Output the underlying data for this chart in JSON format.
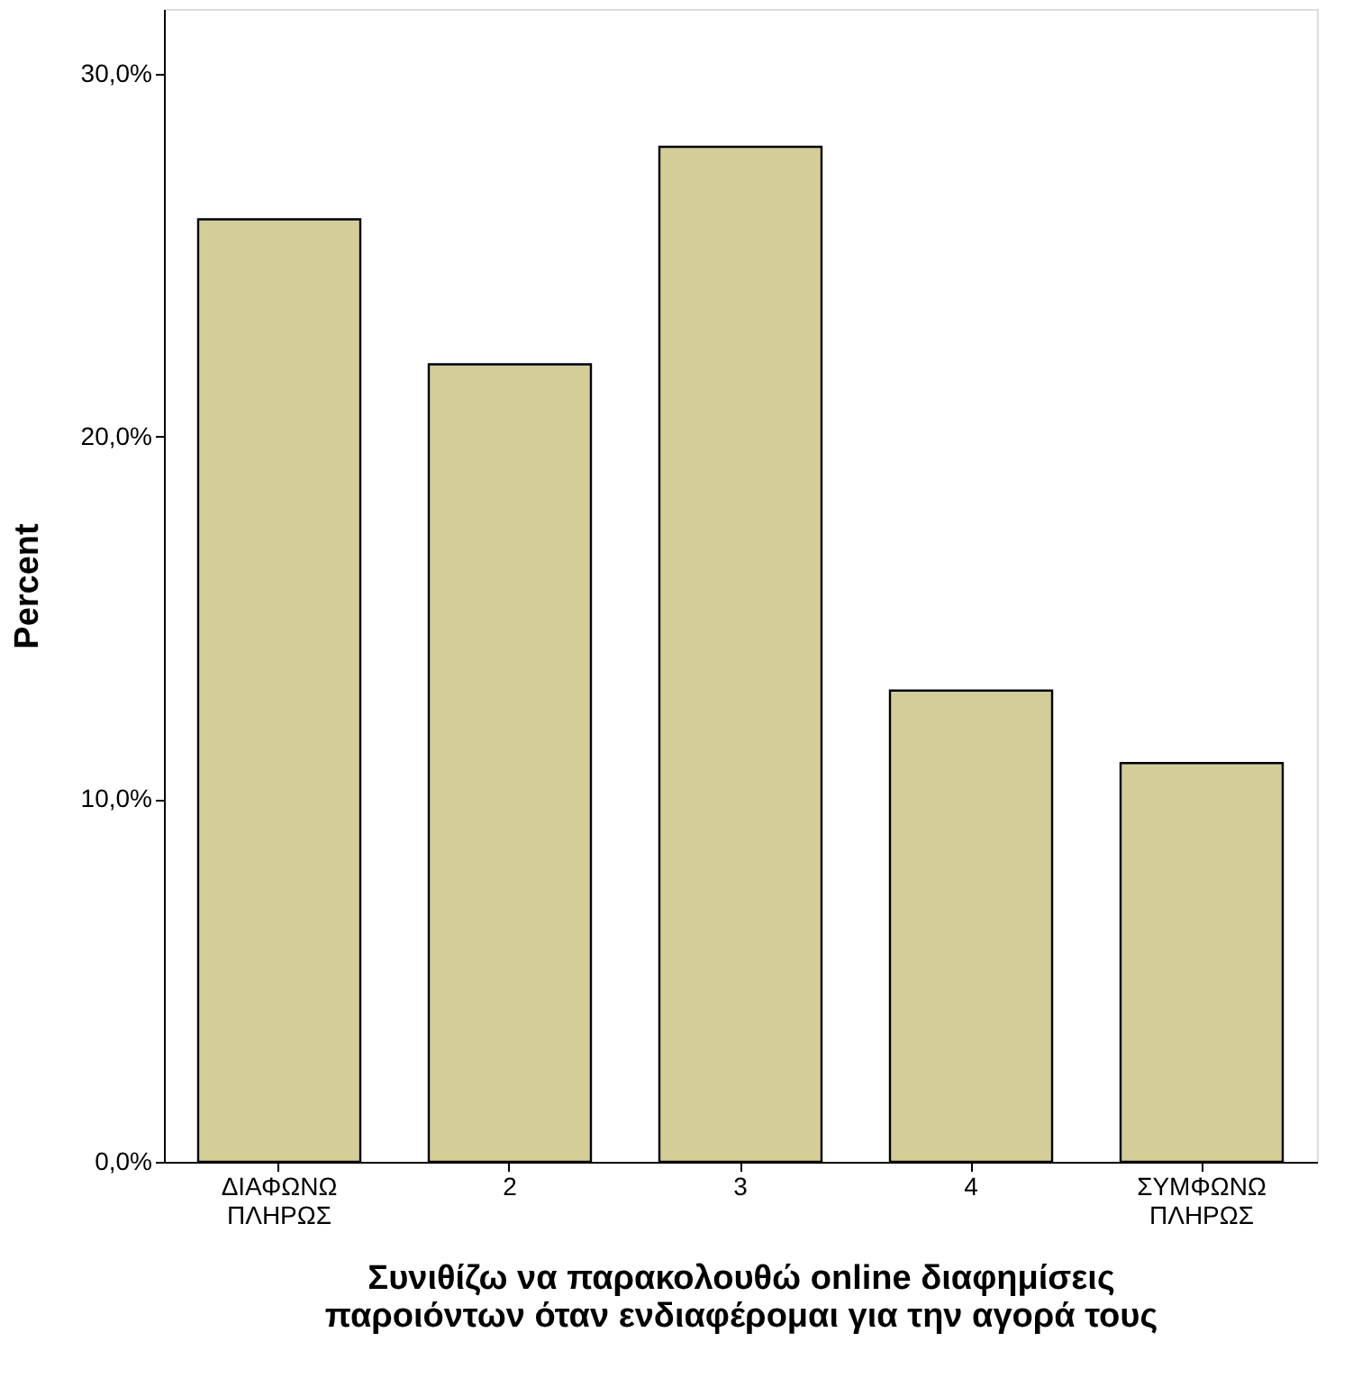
{
  "chart_data": {
    "type": "bar",
    "xlabel": "Συνιθίζω να παρακολουθώ online διαφημίσεις\nπαροιόντων όταν ενδιαφέρομαι για την αγορά τους",
    "ylabel": "Percent",
    "categories": [
      "ΔΙΑΦΩΝΩ ΠΛΗΡΩΣ",
      "2",
      "3",
      "4",
      "ΣΥΜΦΩΝΩ ΠΛΗΡΩΣ"
    ],
    "values": [
      26,
      22,
      28,
      13,
      11
    ],
    "color": "#d3ce97",
    "ylim": [
      0,
      31.8
    ],
    "yticks": [
      {
        "value": 0,
        "label": "0,0%"
      },
      {
        "value": 10,
        "label": "10,0%"
      },
      {
        "value": 20,
        "label": "20,0%"
      },
      {
        "value": 30,
        "label": "30,0%"
      }
    ],
    "grid": false
  }
}
